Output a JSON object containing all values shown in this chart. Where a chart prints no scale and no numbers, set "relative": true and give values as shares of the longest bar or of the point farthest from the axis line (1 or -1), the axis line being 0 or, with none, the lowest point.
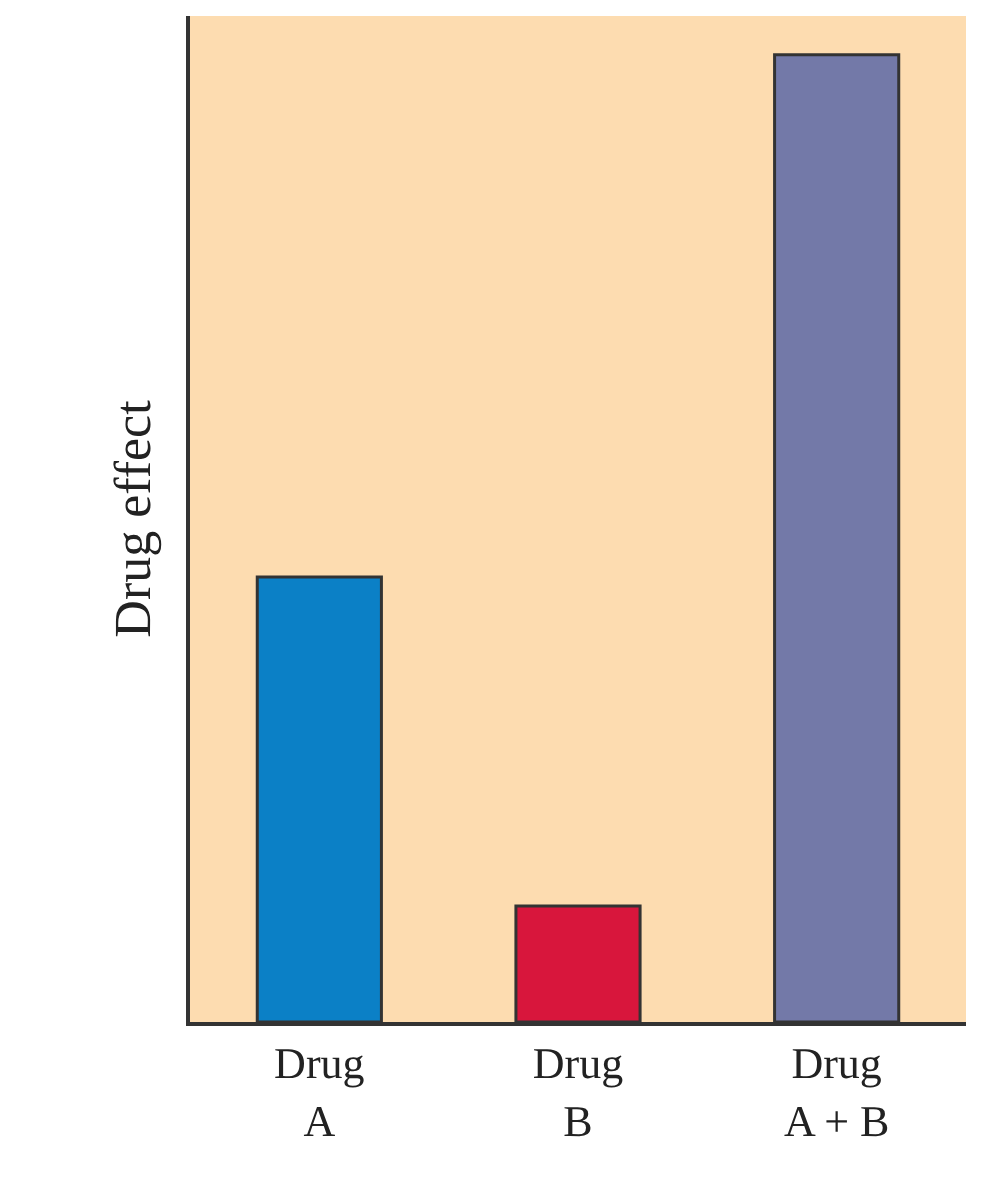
{
  "chart_data": {
    "type": "bar",
    "ylabel": "Drug effect",
    "relative": true,
    "categories": [
      "Drug A",
      "Drug B",
      "Drug A + B"
    ],
    "values": [
      0.46,
      0.12,
      1
    ],
    "colors": [
      "#0b80c6",
      "#d8163c",
      "#7379a8"
    ],
    "grid": false,
    "legend": false
  }
}
